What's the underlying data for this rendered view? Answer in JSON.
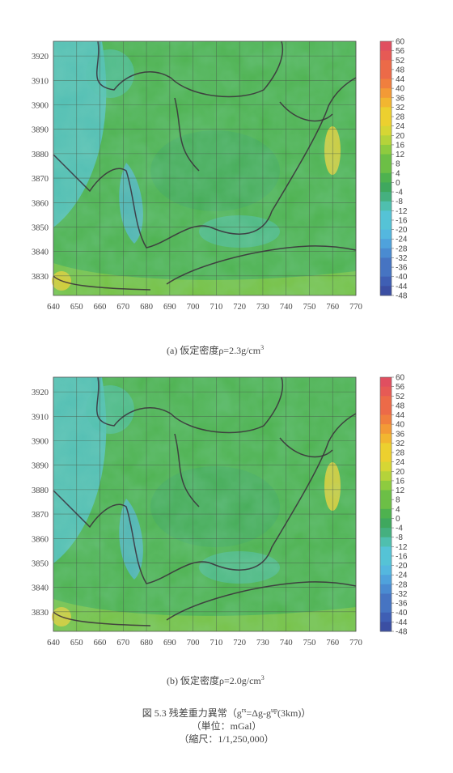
{
  "colors": {
    "palette": [
      "#3b4fa3",
      "#3f5fb4",
      "#4674c2",
      "#4a8bd1",
      "#4fa2dc",
      "#54b7df",
      "#55c3d6",
      "#4fbfae",
      "#45b07f",
      "#3fa85e",
      "#4eb24f",
      "#6cbf46",
      "#8ecb3f",
      "#b5d33a",
      "#d6d634",
      "#ecd02f",
      "#f2b630",
      "#f39a36",
      "#f07f3e",
      "#ec6a48",
      "#e65a55",
      "#e04f60"
    ],
    "field_low": "#4fb4b8",
    "field_high": "#e8c830"
  },
  "charts": [
    {
      "caption_prefix": "(a) 仮定密度ρ=",
      "caption_value": "2.3g/cm",
      "caption_sup": "3"
    },
    {
      "caption_prefix": "(b) 仮定密度ρ=",
      "caption_value": "2.0g/cm",
      "caption_sup": "3"
    }
  ],
  "chart_data": [
    {
      "type": "heatmap",
      "x_ticks": [
        640,
        650,
        660,
        670,
        680,
        690,
        700,
        710,
        720,
        730,
        740,
        750,
        760,
        770
      ],
      "y_ticks": [
        3830,
        3840,
        3850,
        3860,
        3870,
        3880,
        3890,
        3900,
        3910,
        3920
      ],
      "xlim": [
        640,
        770
      ],
      "ylim": [
        3822,
        3926
      ],
      "colorbar_ticks": [
        60,
        56,
        52,
        48,
        44,
        40,
        36,
        32,
        28,
        24,
        20,
        16,
        12,
        8,
        4,
        0,
        -4,
        -8,
        -12,
        -16,
        -20,
        -24,
        -28,
        -32,
        -36,
        -40,
        -44,
        -48
      ],
      "colorbar_range": [
        -48,
        60
      ],
      "grid": true
    },
    {
      "type": "heatmap",
      "x_ticks": [
        640,
        650,
        660,
        670,
        680,
        690,
        700,
        710,
        720,
        730,
        740,
        750,
        760,
        770
      ],
      "y_ticks": [
        3830,
        3840,
        3850,
        3860,
        3870,
        3880,
        3890,
        3900,
        3910,
        3920
      ],
      "xlim": [
        640,
        770
      ],
      "ylim": [
        3822,
        3926
      ],
      "colorbar_ticks": [
        60,
        56,
        52,
        48,
        44,
        40,
        36,
        32,
        28,
        24,
        20,
        16,
        12,
        8,
        4,
        0,
        -4,
        -8,
        -12,
        -16,
        -20,
        -24,
        -28,
        -32,
        -36,
        -40,
        -44,
        -48
      ],
      "colorbar_range": [
        -48,
        60
      ],
      "grid": true
    }
  ],
  "figure_caption": {
    "line1_prefix": "図 5.3 残差重力異常（g",
    "line1_sup1": "rs",
    "line1_mid": "=Δg-g",
    "line1_sup2": "up",
    "line1_suffix": "(3km)）",
    "line2": "（単位：mGal）",
    "line3": "（縮尺：1/1,250,000）"
  }
}
